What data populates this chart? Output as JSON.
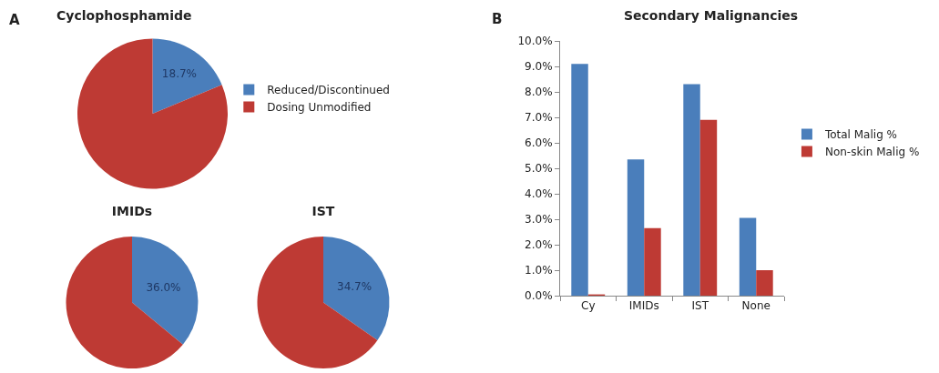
{
  "chart_data": [
    {
      "type": "pie",
      "title": "Cyclophosphamide",
      "annotations": [
        "A"
      ],
      "categories": [
        "Reduced/Discontinued",
        "Dosing Unmodified"
      ],
      "values": [
        18.7,
        81.3
      ],
      "value_labels": [
        "18.7%",
        null
      ],
      "colors": [
        "#4a7ebb",
        "#be3a34"
      ],
      "legend": "right"
    },
    {
      "type": "pie",
      "title": "IMIDs",
      "categories": [
        null,
        null
      ],
      "values": [
        36.0,
        64.0
      ],
      "value_labels": [
        "36.0%",
        null
      ],
      "colors": [
        "#4a7ebb",
        "#be3a34"
      ]
    },
    {
      "type": "pie",
      "title": "IST",
      "categories": [
        null,
        null
      ],
      "values": [
        34.7,
        65.3
      ],
      "value_labels": [
        "34.7%",
        null
      ],
      "colors": [
        "#4a7ebb",
        "#be3a34"
      ]
    },
    {
      "type": "bar",
      "title": "Secondary Malignancies",
      "annotations": [
        "B"
      ],
      "categories": [
        "Cy",
        "IMIDs",
        "IST",
        "None"
      ],
      "series": [
        {
          "name": "Total Malig %",
          "color": "#4a7ebb",
          "values": [
            9.1,
            5.35,
            8.3,
            3.05
          ]
        },
        {
          "name": "Non-skin Malig %",
          "color": "#be3a34",
          "values": [
            0.05,
            2.65,
            6.9,
            1.0
          ]
        }
      ],
      "ylim": [
        0,
        10
      ],
      "yticks": [
        {
          "value": 0,
          "label": "0.0%"
        },
        {
          "value": 1,
          "label": "1.0%"
        },
        {
          "value": 2,
          "label": "2.0%"
        },
        {
          "value": 3,
          "label": "3.0%"
        },
        {
          "value": 4,
          "label": "4.0%"
        },
        {
          "value": 5,
          "label": "5.0%"
        },
        {
          "value": 6,
          "label": "6.0%"
        },
        {
          "value": 7,
          "label": "7.0%"
        },
        {
          "value": 8,
          "label": "8.0%"
        },
        {
          "value": 9,
          "label": "9.0%"
        },
        {
          "value": 10,
          "label": "10.0%"
        }
      ],
      "grid": false,
      "legend": "right"
    }
  ]
}
